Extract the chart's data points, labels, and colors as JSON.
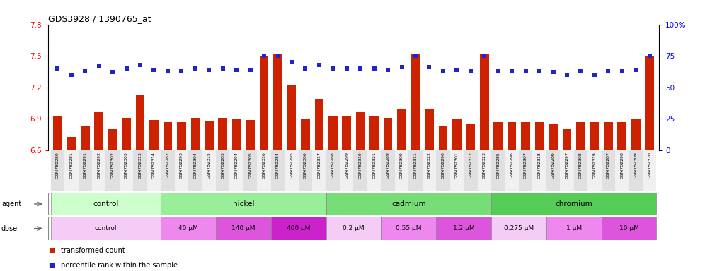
{
  "title": "GDS3928 / 1390765_at",
  "samples": [
    "GSM782280",
    "GSM782281",
    "GSM782291",
    "GSM782292",
    "GSM782302",
    "GSM782303",
    "GSM782313",
    "GSM782314",
    "GSM782282",
    "GSM782293",
    "GSM782304",
    "GSM782315",
    "GSM782283",
    "GSM782294",
    "GSM782305",
    "GSM782316",
    "GSM782284",
    "GSM782295",
    "GSM782306",
    "GSM782317",
    "GSM782288",
    "GSM782299",
    "GSM782310",
    "GSM782321",
    "GSM782289",
    "GSM782300",
    "GSM782311",
    "GSM782322",
    "GSM782290",
    "GSM782301",
    "GSM782312",
    "GSM782323",
    "GSM782285",
    "GSM782296",
    "GSM782307",
    "GSM782318",
    "GSM782286",
    "GSM782297",
    "GSM782308",
    "GSM782319",
    "GSM782287",
    "GSM782298",
    "GSM782309",
    "GSM782320"
  ],
  "transformed_count": [
    6.93,
    6.73,
    6.83,
    6.97,
    6.8,
    6.91,
    7.13,
    6.89,
    6.87,
    6.87,
    6.91,
    6.88,
    6.91,
    6.9,
    6.89,
    7.5,
    7.52,
    7.22,
    6.9,
    7.09,
    6.93,
    6.93,
    6.97,
    6.93,
    6.91,
    7.0,
    7.52,
    7.0,
    6.83,
    6.9,
    6.85,
    7.52,
    6.87,
    6.87,
    6.87,
    6.87,
    6.85,
    6.8,
    6.87,
    6.87,
    6.87,
    6.87,
    6.9,
    7.5
  ],
  "percentile_rank": [
    65,
    60,
    63,
    67,
    62,
    65,
    68,
    64,
    63,
    63,
    65,
    64,
    65,
    64,
    64,
    75,
    75,
    70,
    65,
    68,
    65,
    65,
    65,
    65,
    64,
    66,
    75,
    66,
    63,
    64,
    63,
    75,
    63,
    63,
    63,
    63,
    62,
    60,
    63,
    60,
    63,
    63,
    64,
    75
  ],
  "ylim_left": [
    6.6,
    7.8
  ],
  "yticks_left": [
    6.6,
    6.9,
    7.2,
    7.5,
    7.8
  ],
  "ylim_right": [
    0,
    100
  ],
  "yticks_right": [
    0,
    25,
    50,
    75,
    100
  ],
  "ytick_labels_right": [
    "0",
    "25",
    "50",
    "75",
    "100%"
  ],
  "bar_color": "#cc2200",
  "dot_color": "#2222cc",
  "agent_groups": [
    {
      "label": "control",
      "start": 0,
      "end": 8,
      "color": "#ccffcc"
    },
    {
      "label": "nickel",
      "start": 8,
      "end": 20,
      "color": "#99ee99"
    },
    {
      "label": "cadmium",
      "start": 20,
      "end": 32,
      "color": "#77dd77"
    },
    {
      "label": "chromium",
      "start": 32,
      "end": 44,
      "color": "#55cc55"
    }
  ],
  "dose_groups": [
    {
      "label": "control",
      "start": 0,
      "end": 8,
      "color": "#f5ccf5"
    },
    {
      "label": "40 μM",
      "start": 8,
      "end": 12,
      "color": "#ee88ee"
    },
    {
      "label": "140 μM",
      "start": 12,
      "end": 16,
      "color": "#dd55dd"
    },
    {
      "label": "400 μM",
      "start": 16,
      "end": 20,
      "color": "#cc22cc"
    },
    {
      "label": "0.2 μM",
      "start": 20,
      "end": 24,
      "color": "#f5ccf5"
    },
    {
      "label": "0.55 μM",
      "start": 24,
      "end": 28,
      "color": "#ee88ee"
    },
    {
      "label": "1.2 μM",
      "start": 28,
      "end": 32,
      "color": "#dd55dd"
    },
    {
      "label": "0.275 μM",
      "start": 32,
      "end": 36,
      "color": "#f5ccf5"
    },
    {
      "label": "1 μM",
      "start": 36,
      "end": 40,
      "color": "#ee88ee"
    },
    {
      "label": "10 μM",
      "start": 40,
      "end": 44,
      "color": "#dd55dd"
    }
  ],
  "legend_items": [
    {
      "label": "transformed count",
      "color": "#cc2200"
    },
    {
      "label": "percentile rank within the sample",
      "color": "#2222cc"
    }
  ]
}
